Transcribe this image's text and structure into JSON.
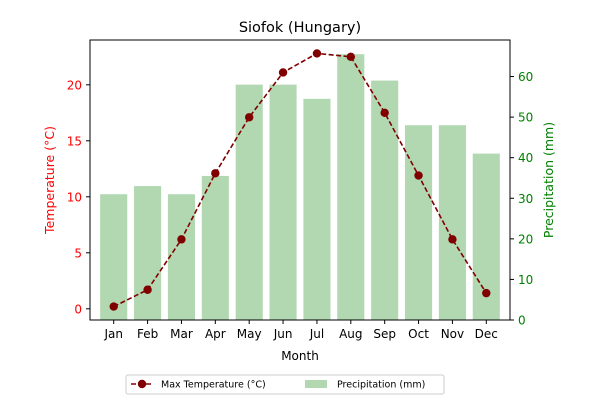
{
  "chart_data": {
    "type": "bar+line",
    "title": "Siofok (Hungary)",
    "xlabel": "Month",
    "ylabel_left": "Temperature (°C)",
    "ylabel_right": "Precipitation (mm)",
    "categories": [
      "Jan",
      "Feb",
      "Mar",
      "Apr",
      "May",
      "Jun",
      "Jul",
      "Aug",
      "Sep",
      "Oct",
      "Nov",
      "Dec"
    ],
    "series": [
      {
        "name": "Max Temperature (°C)",
        "kind": "line",
        "axis": "left",
        "color": "#800000",
        "values": [
          0.2,
          1.7,
          6.2,
          12.1,
          17.1,
          21.1,
          22.8,
          22.5,
          17.5,
          11.9,
          6.2,
          1.4
        ]
      },
      {
        "name": "Precipitation (mm)",
        "kind": "bar",
        "axis": "right",
        "color": "#b2d8b2",
        "values": [
          31,
          33,
          31,
          35.5,
          58,
          58,
          54.5,
          65.5,
          59,
          48,
          48,
          41
        ]
      }
    ],
    "ylim_left": [
      -1,
      24
    ],
    "yticks_left": [
      0,
      5,
      10,
      15,
      20
    ],
    "ylim_right": [
      0,
      69
    ],
    "yticks_right": [
      0,
      10,
      20,
      30,
      40,
      50,
      60
    ],
    "left_axis_color": "#ff0000",
    "right_axis_color": "#008000",
    "legend_position": "bottom-center",
    "grid": false
  }
}
